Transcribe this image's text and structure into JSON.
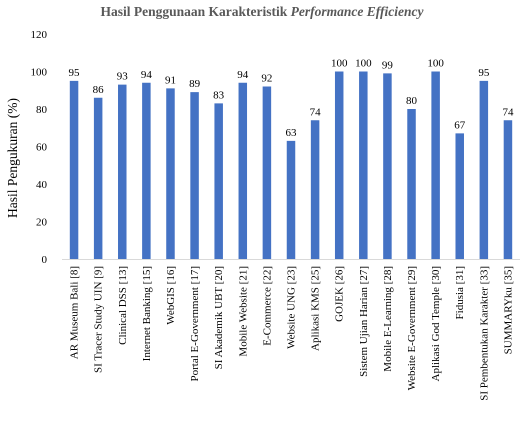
{
  "chart_data": {
    "type": "bar",
    "title": "Hasil Penggunaan Karakteristik",
    "title_italic": "Performance Efficiency",
    "ylabel": "Hasil Pengukuran (%)",
    "xlabel": "",
    "ylim": [
      0,
      120
    ],
    "yticks": [
      0,
      20,
      40,
      60,
      80,
      100,
      120
    ],
    "grid": false,
    "legend": "none",
    "bar_color": "#4472C4",
    "categories": [
      "AR Museum Bali [8]",
      "SI Tracer Study UIN [9]",
      "Clinical DSS [13]",
      "Internet Banking [15]",
      "WebGIS [16]",
      "Portal E-Government [17]",
      "SI Akademik UBT [20]",
      "Mobile Website [21]",
      "E-Commerce [22]",
      "Website UNG [23]",
      "Aplikasi KMS [25]",
      "GOJEK [26]",
      "Sistem Ujian Harian [27]",
      "Mobile E-Learning [28]",
      "Website E-Government [29]",
      "Aplikasi God Temple [30]",
      "Fidusia [31]",
      "SI Pembentukan Karakter [33]",
      "SUMMARYku [35]"
    ],
    "values": [
      95,
      86,
      93,
      94,
      91,
      89,
      83,
      94,
      92,
      63,
      74,
      100,
      100,
      99,
      80,
      100,
      67,
      95,
      74
    ]
  }
}
